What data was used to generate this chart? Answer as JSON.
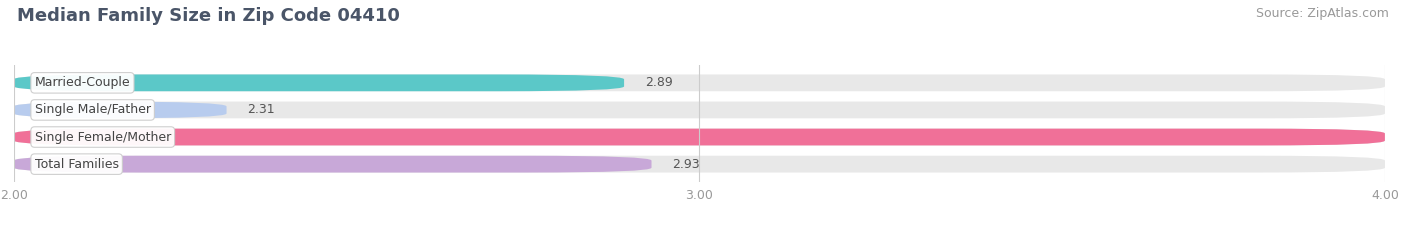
{
  "title": "Median Family Size in Zip Code 04410",
  "source": "Source: ZipAtlas.com",
  "categories": [
    "Married-Couple",
    "Single Male/Father",
    "Single Female/Mother",
    "Total Families"
  ],
  "values": [
    2.89,
    2.31,
    4.0,
    2.93
  ],
  "bar_colors": [
    "#5bc8c8",
    "#b8ccee",
    "#f07098",
    "#c8a8d8"
  ],
  "bar_bg_color": "#e8e8e8",
  "background_color": "#ffffff",
  "xlim": [
    2.0,
    4.0
  ],
  "xticks": [
    2.0,
    3.0,
    4.0
  ],
  "xtick_labels": [
    "2.00",
    "3.00",
    "4.00"
  ],
  "title_fontsize": 13,
  "source_fontsize": 9,
  "label_fontsize": 9,
  "value_fontsize": 9
}
